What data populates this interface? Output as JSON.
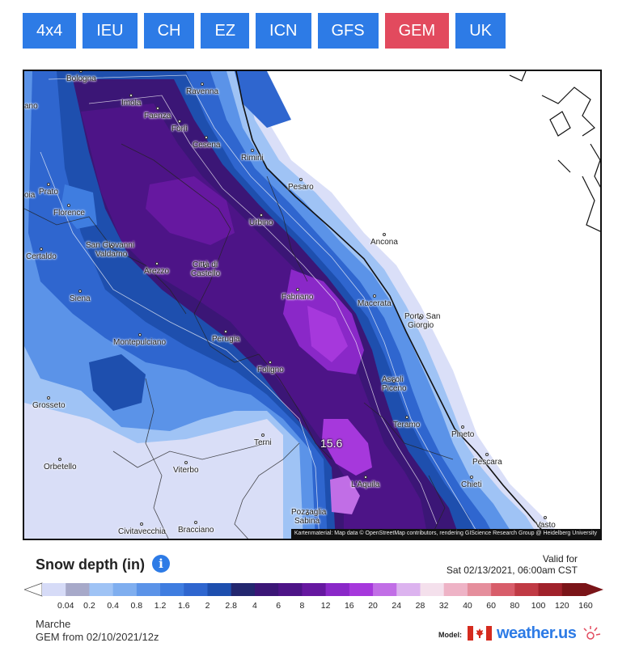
{
  "tabs": [
    {
      "label": "4x4",
      "active": false
    },
    {
      "label": "IEU",
      "active": false
    },
    {
      "label": "CH",
      "active": false
    },
    {
      "label": "EZ",
      "active": false
    },
    {
      "label": "ICN",
      "active": false
    },
    {
      "label": "GFS",
      "active": false
    },
    {
      "label": "GEM",
      "active": true
    },
    {
      "label": "UK",
      "active": false
    }
  ],
  "map": {
    "max_value_label": "15.6",
    "attribution": "Kartenmaterial: Map data © OpenStreetMap contributors, rendering GIScience Research Group @ Heidelberg University",
    "places": {
      "bologna": "Bologna",
      "imola": "Imola",
      "ravenna": "Ravenna",
      "faenza": "Faenza",
      "forli": "Forlì",
      "cesena": "Cesena",
      "rimini": "Rimini",
      "pesaro": "Pesaro",
      "prato": "Prato",
      "florence": "Florence",
      "urbino": "Urbino",
      "ancona": "Ancona",
      "san_giovanni": "San Giovanni",
      "valdarno": "Valdarno",
      "certaldo": "Certaldo",
      "arezzo": "Arezzo",
      "citta_di": "Città di",
      "castello": "Castello",
      "fabriano": "Fabriano",
      "macerata": "Macerata",
      "porto_san": "Porto San",
      "giorgio": "Giorgio",
      "siena": "Siena",
      "montepulciano": "Montepulciano",
      "perugia": "Perugia",
      "foligno": "Foligno",
      "ascoli": "Ascoli",
      "piceno": "Piceno",
      "teramo": "Teramo",
      "pineto": "Pineto",
      "grosseto": "Grosseto",
      "terni": "Terni",
      "pescara": "Pescara",
      "orbetello": "Orbetello",
      "viterbo": "Viterbo",
      "laquila": "L'Aquila",
      "chieti": "Chieti",
      "pozzaglia": "Pozzaglia",
      "sabina": "Sabina",
      "civitavecchia": "Civitavecchia",
      "bracciano": "Bracciano",
      "vasto": "Vasto",
      "edge_ano": "ano",
      "edge_oia": "oia"
    }
  },
  "legend": {
    "title": "Snow depth (in)",
    "info_icon": "info-icon",
    "valid_label": "Valid for",
    "valid_date": "Sat 02/13/2021, 06:00am CST",
    "ticks": [
      "0.04",
      "0.2",
      "0.4",
      "0.8",
      "1.2",
      "1.6",
      "2",
      "2.8",
      "4",
      "6",
      "8",
      "12",
      "16",
      "20",
      "24",
      "28",
      "32",
      "40",
      "60",
      "80",
      "100",
      "120",
      "160"
    ],
    "colors": [
      "#d6dbf7",
      "#a7a9c9",
      "#9fc3f5",
      "#7faeef",
      "#5b93e8",
      "#3f7de0",
      "#2f66cf",
      "#1e4fae",
      "#23276f",
      "#3b1676",
      "#4d1487",
      "#6618a0",
      "#8a28c8",
      "#a638dc",
      "#c16ee6",
      "#dcb3ef",
      "#f4e0ec",
      "#eeb3c6",
      "#e58e9c",
      "#d85d6a",
      "#c03a44",
      "#a0212b",
      "#7a1418"
    ]
  },
  "footer": {
    "region": "Marche",
    "model_run": "GEM from 02/10/2021/12z",
    "model_label": "Model:",
    "brand": "weather.us",
    "flag_icon": "canada-flag-icon",
    "logo_icon": "sun-rays-icon"
  }
}
